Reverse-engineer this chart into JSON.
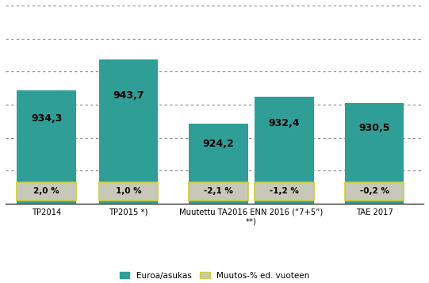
{
  "euro_values": [
    934.3,
    943.7,
    924.2,
    932.4,
    930.5
  ],
  "pct_values": [
    2.0,
    1.0,
    -2.1,
    -1.2,
    -0.2
  ],
  "euro_labels": [
    "934,3",
    "943,7",
    "924,2",
    "932,4",
    "930,5"
  ],
  "pct_labels": [
    "2,0 %",
    "1,0 %",
    "-2,1 %",
    "-1,2 %",
    "-0,2 %"
  ],
  "teal_color": "#2E9E96",
  "pct_box_facecolor": "#C8C8B8",
  "pct_box_edgecolor": "#CCCC44",
  "background_color": "#FFFFFF",
  "ylim_min": 900,
  "ylim_max": 960,
  "bar_positions": [
    0.5,
    1.5,
    2.6,
    3.4,
    4.5
  ],
  "bar_width": 0.72,
  "xtick_positions": [
    0.5,
    1.5,
    3.0,
    4.5
  ],
  "xtick_labels": [
    "TP2014",
    "TP2015 *)",
    "Muutettu TA2016 ENN 2016 (“7+5”)\n**)",
    "TAE 2017"
  ],
  "legend_euro": "Euroa/asukas",
  "legend_pct": "Muutos-% ed. vuoteen",
  "grid_color": "#888888",
  "ytick_positions": [
    900,
    910,
    920,
    930,
    940,
    950,
    960
  ]
}
